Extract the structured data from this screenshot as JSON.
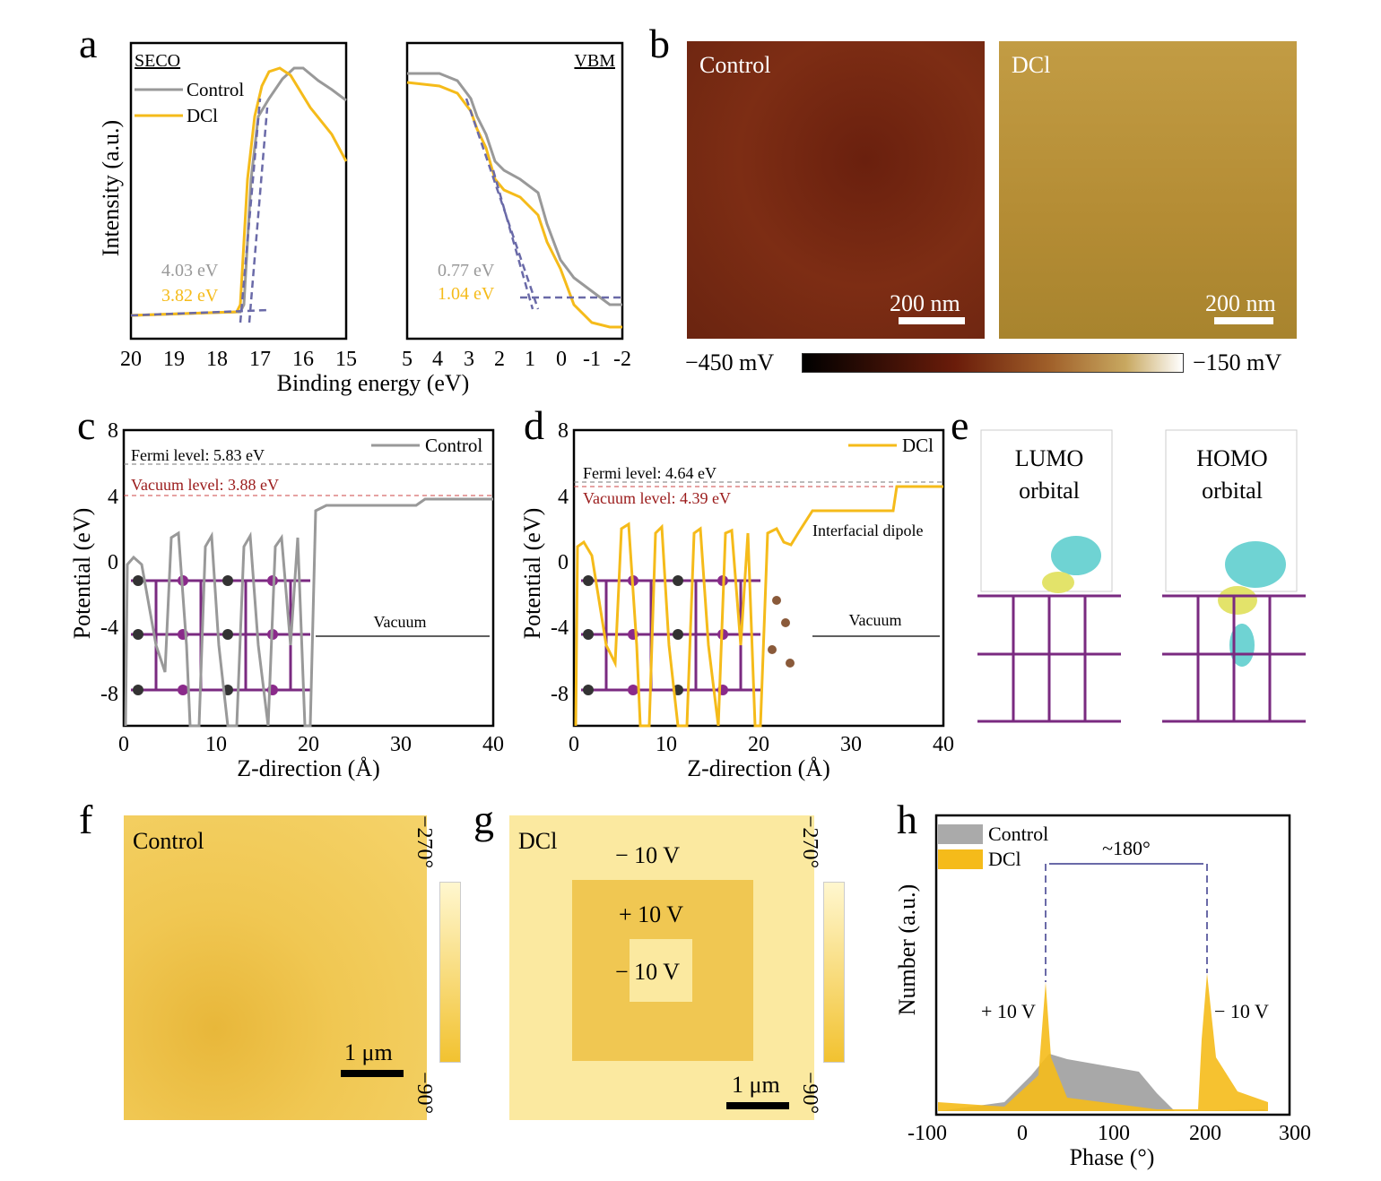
{
  "panel_letters": [
    "a",
    "b",
    "c",
    "d",
    "e",
    "f",
    "g",
    "h"
  ],
  "a": {
    "ylabel": "Intensity (a.u.)",
    "xlabel": "Binding energy (eV)",
    "seco": {
      "tag": "SECO",
      "xticks": [
        "20",
        "19",
        "18",
        "17",
        "16",
        "15"
      ],
      "legend": [
        "Control",
        "DCl"
      ],
      "ann_control": "4.03 eV",
      "ann_dcl": "3.82 eV"
    },
    "vbm": {
      "tag": "VBM",
      "xticks": [
        "5",
        "4",
        "3",
        "2",
        "1",
        "0",
        "-1",
        "-2"
      ],
      "ann_control": "0.77 eV",
      "ann_dcl": "1.04 eV"
    }
  },
  "b": {
    "left_label": "Control",
    "right_label": "DCl",
    "scale": "200 nm",
    "cbar_min": "−450 mV",
    "cbar_max": "−150 mV"
  },
  "c": {
    "ylabel": "Potential (eV)",
    "xlabel": "Z-direction (Å)",
    "legend": "Control",
    "fermi": "Fermi level: 5.83 eV",
    "vacuum": "Vacuum level: 3.88 eV",
    "region": "Vacuum",
    "yticks": [
      "8",
      "4",
      "0",
      "-4",
      "-8"
    ],
    "xticks": [
      "0",
      "10",
      "20",
      "30",
      "40"
    ]
  },
  "d": {
    "ylabel": "Potential (eV)",
    "xlabel": "Z-direction (Å)",
    "legend": "DCl",
    "fermi": "Fermi level: 4.64 eV",
    "vacuum": "Vacuum level: 4.39 eV",
    "dipole": "Interfacial dipole",
    "region": "Vacuum",
    "yticks": [
      "8",
      "4",
      "0",
      "-4",
      "-8"
    ],
    "xticks": [
      "0",
      "10",
      "20",
      "30",
      "40"
    ]
  },
  "e": {
    "lumo1": "LUMO",
    "lumo2": "orbital",
    "homo1": "HOMO",
    "homo2": "orbital"
  },
  "f": {
    "label": "Control",
    "scale": "1 μm",
    "cbar_top": "−270°",
    "cbar_bot": "−90°"
  },
  "g": {
    "label": "DCl",
    "v1": "− 10 V",
    "v2": "+ 10 V",
    "v3": "− 10 V",
    "scale": "1 μm",
    "cbar_top": "−270°",
    "cbar_bot": "−90°"
  },
  "h": {
    "ylabel": "Number (a.u.)",
    "xlabel": "Phase (°)",
    "legend": [
      "Control",
      "DCl"
    ],
    "span": "~180°",
    "left_v": "+ 10 V",
    "right_v": "− 10 V",
    "xticks": [
      "-100",
      "0",
      "100",
      "200",
      "300"
    ]
  },
  "colors": {
    "control": "#999999",
    "dcl": "#f5bb1a",
    "fit": "#6a6aa8",
    "afm_control": "#7a2a12",
    "afm_dcl": "#b89236",
    "pfm": "#f2c94c"
  },
  "chart_data": [
    {
      "type": "line",
      "title": "",
      "xlabel": "Binding energy (eV)",
      "ylabel": "Intensity (a.u.)",
      "xlim": [
        20,
        15
      ],
      "series": [
        {
          "name": "Control",
          "x": [
            20,
            18,
            17.3,
            17.1,
            16.9,
            16.5,
            16.0,
            15.5,
            15.0
          ],
          "y": [
            0.02,
            0.04,
            0.08,
            0.45,
            0.8,
            0.94,
            0.98,
            0.96,
            0.9
          ]
        },
        {
          "name": "DCl",
          "x": [
            20,
            18,
            17.4,
            17.3,
            17.2,
            17.0,
            16.6,
            16.0,
            15.5,
            15.0
          ],
          "y": [
            0.02,
            0.04,
            0.08,
            0.5,
            0.8,
            0.95,
            0.98,
            0.8,
            0.7,
            0.6
          ]
        }
      ]
    },
    {
      "type": "line",
      "title": "",
      "xlabel": "Binding energy (eV)",
      "ylabel": "Intensity (a.u.)",
      "xlim": [
        5,
        -2
      ],
      "series": [
        {
          "name": "Control",
          "x": [
            5,
            4,
            3,
            2.5,
            2,
            1.5,
            1,
            0.5,
            0,
            -1,
            -2
          ],
          "y": [
            0.92,
            0.9,
            0.85,
            0.7,
            0.56,
            0.52,
            0.4,
            0.25,
            0.15,
            0.1,
            0.08
          ]
        },
        {
          "name": "DCl",
          "x": [
            5,
            4,
            3,
            2.5,
            2,
            1.5,
            1,
            0.5,
            0,
            -1,
            -2
          ],
          "y": [
            0.88,
            0.84,
            0.78,
            0.6,
            0.5,
            0.45,
            0.35,
            0.22,
            0.12,
            0.08,
            0.06
          ]
        }
      ]
    },
    {
      "type": "line",
      "title": "",
      "xlabel": "Z-direction (Å)",
      "ylabel": "Potential (eV)",
      "ylim": [
        -10,
        8
      ],
      "xlim": [
        0,
        40
      ],
      "series": [
        {
          "name": "Control",
          "x": [
            0,
            1,
            2,
            3.5,
            5,
            6.5,
            7.5,
            9,
            10.5,
            12.5,
            13.5,
            15,
            16.5,
            18,
            19,
            20,
            21,
            22,
            30,
            32,
            40
          ],
          "y": [
            -10,
            0.3,
            0,
            -6,
            1.8,
            -10,
            -10,
            1.6,
            -6,
            -10,
            -10,
            1.6,
            -6,
            1.6,
            -10,
            -10,
            3.5,
            3.6,
            3.6,
            3.88,
            3.88
          ]
        }
      ]
    },
    {
      "type": "line",
      "title": "",
      "xlabel": "Z-direction (Å)",
      "ylabel": "Potential (eV)",
      "ylim": [
        -10,
        8
      ],
      "xlim": [
        0,
        40
      ],
      "series": [
        {
          "name": "DCl",
          "x": [
            0,
            1,
            2,
            3.5,
            5,
            6.5,
            7.5,
            9,
            10.5,
            12.5,
            13.5,
            15,
            16.5,
            18,
            19,
            20,
            21,
            22,
            23,
            25,
            30,
            34,
            35,
            40
          ],
          "y": [
            -10,
            0.8,
            0.6,
            -6,
            2.1,
            -10,
            -10,
            2.0,
            -6,
            -10,
            -10,
            1.8,
            -6,
            1.8,
            -10,
            -10,
            1.2,
            1.5,
            0.8,
            3.0,
            3.0,
            3.0,
            4.39,
            4.39
          ]
        }
      ]
    },
    {
      "type": "bar",
      "title": "",
      "xlabel": "Phase (°)",
      "ylabel": "Number (a.u.)",
      "xlim": [
        -100,
        300
      ],
      "series": [
        {
          "name": "Control",
          "x": [
            -100,
            -50,
            0,
            25,
            50,
            100,
            130,
            160,
            200,
            270
          ],
          "y": [
            0.02,
            0.03,
            0.1,
            0.3,
            0.28,
            0.26,
            0.26,
            0.05,
            0.01,
            0.01
          ]
        },
        {
          "name": "DCl",
          "x": [
            -100,
            -50,
            0,
            20,
            25,
            35,
            60,
            150,
            180,
            195,
            200,
            210,
            240,
            270
          ],
          "y": [
            0.04,
            0.03,
            0.05,
            0.35,
            0.55,
            0.2,
            0.08,
            0.02,
            0.01,
            0.1,
            1.0,
            0.4,
            0.12,
            0.05
          ]
        }
      ]
    }
  ]
}
